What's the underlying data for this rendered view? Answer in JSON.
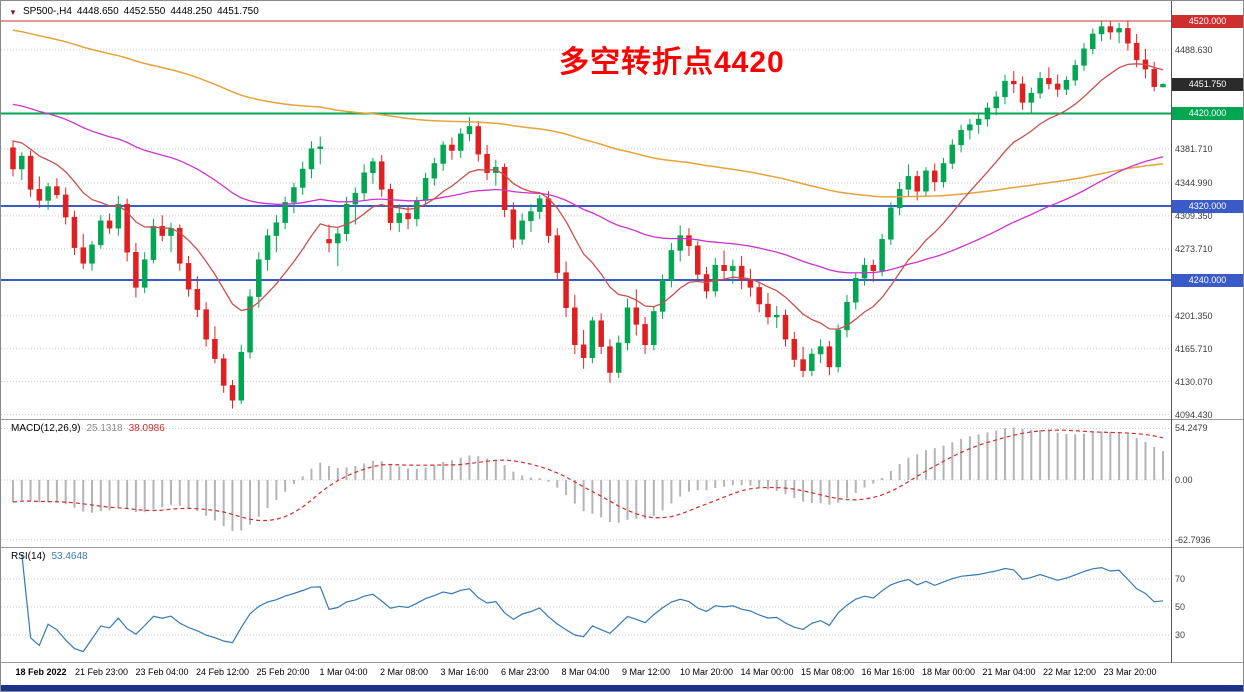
{
  "window": {
    "background": "#ffffff",
    "border_color": "#8a8a8a",
    "bottom_bar_color": "#1e3091"
  },
  "chart": {
    "title": {
      "marker": "▼",
      "symbol_period": "SP500-,H4",
      "open": "4448.650",
      "high": "4452.550",
      "low": "4448.250",
      "close": "4451.750"
    },
    "annotation": {
      "text": "多空转折点4420",
      "color": "#ff0000"
    },
    "hlines": [
      {
        "value": 4520,
        "color": "#cf2e2e",
        "width": 1
      },
      {
        "value": 4420,
        "color": "#00a651",
        "width": 2
      },
      {
        "value": 4320,
        "color": "#3a5bc7",
        "width": 2
      },
      {
        "value": 4240,
        "color": "#3a5bc7",
        "width": 2
      }
    ],
    "axis": {
      "tags": [
        {
          "text": "4520.000",
          "value": 4520,
          "color": "#cf2e2e"
        },
        {
          "text": "4451.750",
          "value": 4451.75,
          "color": "#2b2b2b"
        },
        {
          "text": "4420.000",
          "value": 4420,
          "color": "#00a651"
        },
        {
          "text": "4320.000",
          "value": 4320,
          "color": "#3a5bc7"
        },
        {
          "text": "4240.000",
          "value": 4240,
          "color": "#3a5bc7"
        }
      ],
      "grid_labels": [
        {
          "text": "4488.630",
          "value": 4488.63
        },
        {
          "text": "4381.710",
          "value": 4381.71
        },
        {
          "text": "4344.990",
          "value": 4344.99
        },
        {
          "text": "4309.350",
          "value": 4309.35
        },
        {
          "text": "4273.710",
          "value": 4273.71
        },
        {
          "text": "4201.350",
          "value": 4201.35
        },
        {
          "text": "4165.710",
          "value": 4165.71
        },
        {
          "text": "4130.070",
          "value": 4130.07
        },
        {
          "text": "4094.430",
          "value": 4094.43
        }
      ],
      "time_labels": [
        "18 Feb 2022",
        "21 Feb 23:00",
        "23 Feb 04:00",
        "24 Feb 12:00",
        "25 Feb 20:00",
        "1 Mar 04:00",
        "2 Mar 08:00",
        "3 Mar 16:00",
        "6 Mar 23:00",
        "8 Mar 04:00",
        "9 Mar 12:00",
        "10 Mar 20:00",
        "14 Mar 00:00",
        "15 Mar 08:00",
        "16 Mar 16:00",
        "18 Mar 00:00",
        "21 Mar 04:00",
        "22 Mar 12:00",
        "23 Mar 20:00"
      ]
    }
  },
  "chart_data": {
    "type": "candlestick",
    "symbol": "SP500",
    "timeframe": "H4",
    "up_color": "#00a651",
    "down_color": "#e02020",
    "y_axis": {
      "top_price": 4520,
      "bottom_price": 4094.43,
      "current_price": 4451.75
    },
    "candles": [
      [
        4383,
        4391,
        4352,
        4360
      ],
      [
        4360,
        4378,
        4348,
        4374
      ],
      [
        4374,
        4380,
        4330,
        4338
      ],
      [
        4338,
        4352,
        4318,
        4326
      ],
      [
        4326,
        4345,
        4316,
        4341
      ],
      [
        4341,
        4350,
        4328,
        4332
      ],
      [
        4332,
        4340,
        4300,
        4308
      ],
      [
        4308,
        4315,
        4267,
        4275
      ],
      [
        4275,
        4290,
        4252,
        4258
      ],
      [
        4258,
        4282,
        4250,
        4278
      ],
      [
        4278,
        4310,
        4274,
        4304
      ],
      [
        4304,
        4312,
        4290,
        4296
      ],
      [
        4296,
        4331,
        4288,
        4322
      ],
      [
        4322,
        4328,
        4260,
        4270
      ],
      [
        4270,
        4280,
        4221,
        4232
      ],
      [
        4232,
        4270,
        4226,
        4262
      ],
      [
        4262,
        4306,
        4258,
        4298
      ],
      [
        4298,
        4310,
        4282,
        4288
      ],
      [
        4288,
        4302,
        4270,
        4296
      ],
      [
        4296,
        4300,
        4250,
        4258
      ],
      [
        4258,
        4266,
        4222,
        4230
      ],
      [
        4230,
        4244,
        4200,
        4208
      ],
      [
        4208,
        4216,
        4168,
        4176
      ],
      [
        4176,
        4190,
        4150,
        4155
      ],
      [
        4155,
        4160,
        4118,
        4126
      ],
      [
        4126,
        4132,
        4101,
        4110
      ],
      [
        4110,
        4170,
        4106,
        4162
      ],
      [
        4162,
        4230,
        4155,
        4222
      ],
      [
        4222,
        4270,
        4210,
        4262
      ],
      [
        4262,
        4295,
        4250,
        4288
      ],
      [
        4288,
        4310,
        4270,
        4302
      ],
      [
        4302,
        4330,
        4295,
        4324
      ],
      [
        4324,
        4345,
        4312,
        4340
      ],
      [
        4340,
        4368,
        4332,
        4360
      ],
      [
        4360,
        4390,
        4350,
        4382
      ],
      [
        4382,
        4395,
        4365,
        4384
      ],
      [
        4284,
        4300,
        4270,
        4280
      ],
      [
        4280,
        4296,
        4255,
        4290
      ],
      [
        4290,
        4330,
        4282,
        4322
      ],
      [
        4322,
        4340,
        4300,
        4334
      ],
      [
        4334,
        4365,
        4326,
        4356
      ],
      [
        4356,
        4372,
        4344,
        4368
      ],
      [
        4368,
        4375,
        4330,
        4338
      ],
      [
        4338,
        4344,
        4294,
        4302
      ],
      [
        4302,
        4322,
        4292,
        4312
      ],
      [
        4312,
        4320,
        4295,
        4306
      ],
      [
        4306,
        4330,
        4298,
        4326
      ],
      [
        4326,
        4356,
        4320,
        4350
      ],
      [
        4350,
        4372,
        4342,
        4366
      ],
      [
        4366,
        4390,
        4358,
        4386
      ],
      [
        4386,
        4394,
        4370,
        4380
      ],
      [
        4380,
        4404,
        4372,
        4398
      ],
      [
        4398,
        4416,
        4390,
        4406
      ],
      [
        4406,
        4412,
        4368,
        4376
      ],
      [
        4376,
        4386,
        4348,
        4356
      ],
      [
        4356,
        4370,
        4342,
        4362
      ],
      [
        4362,
        4366,
        4308,
        4316
      ],
      [
        4316,
        4324,
        4275,
        4284
      ],
      [
        4284,
        4312,
        4278,
        4304
      ],
      [
        4304,
        4322,
        4292,
        4314
      ],
      [
        4314,
        4332,
        4306,
        4328
      ],
      [
        4328,
        4336,
        4280,
        4288
      ],
      [
        4288,
        4296,
        4240,
        4248
      ],
      [
        4248,
        4260,
        4200,
        4210
      ],
      [
        4210,
        4224,
        4160,
        4170
      ],
      [
        4170,
        4186,
        4144,
        4156
      ],
      [
        4156,
        4200,
        4150,
        4196
      ],
      [
        4196,
        4204,
        4160,
        4168
      ],
      [
        4168,
        4176,
        4129,
        4140
      ],
      [
        4140,
        4180,
        4134,
        4172
      ],
      [
        4172,
        4220,
        4164,
        4210
      ],
      [
        4210,
        4230,
        4180,
        4192
      ],
      [
        4192,
        4200,
        4160,
        4170
      ],
      [
        4170,
        4212,
        4164,
        4206
      ],
      [
        4206,
        4246,
        4198,
        4240
      ],
      [
        4240,
        4280,
        4232,
        4272
      ],
      [
        4272,
        4299,
        4260,
        4288
      ],
      [
        4288,
        4296,
        4266,
        4277
      ],
      [
        4277,
        4282,
        4238,
        4246
      ],
      [
        4246,
        4254,
        4220,
        4228
      ],
      [
        4228,
        4264,
        4222,
        4256
      ],
      [
        4256,
        4272,
        4240,
        4250
      ],
      [
        4250,
        4262,
        4236,
        4255
      ],
      [
        4255,
        4266,
        4230,
        4240
      ],
      [
        4240,
        4252,
        4222,
        4232
      ],
      [
        4232,
        4238,
        4205,
        4214
      ],
      [
        4214,
        4226,
        4192,
        4200
      ],
      [
        4200,
        4212,
        4188,
        4202
      ],
      [
        4202,
        4208,
        4168,
        4176
      ],
      [
        4176,
        4184,
        4146,
        4154
      ],
      [
        4154,
        4168,
        4135,
        4142
      ],
      [
        4142,
        4166,
        4136,
        4160
      ],
      [
        4160,
        4176,
        4150,
        4168
      ],
      [
        4168,
        4174,
        4137,
        4146
      ],
      [
        4146,
        4192,
        4140,
        4186
      ],
      [
        4186,
        4224,
        4178,
        4216
      ],
      [
        4216,
        4248,
        4208,
        4242
      ],
      [
        4242,
        4264,
        4234,
        4256
      ],
      [
        4256,
        4262,
        4238,
        4250
      ],
      [
        4250,
        4290,
        4244,
        4284
      ],
      [
        4284,
        4324,
        4278,
        4318
      ],
      [
        4318,
        4346,
        4310,
        4338
      ],
      [
        4338,
        4365,
        4330,
        4352
      ],
      [
        4352,
        4358,
        4326,
        4336
      ],
      [
        4336,
        4362,
        4330,
        4358
      ],
      [
        4358,
        4366,
        4336,
        4346
      ],
      [
        4346,
        4372,
        4340,
        4366
      ],
      [
        4366,
        4392,
        4360,
        4386
      ],
      [
        4386,
        4408,
        4378,
        4402
      ],
      [
        4402,
        4414,
        4392,
        4408
      ],
      [
        4408,
        4420,
        4398,
        4414
      ],
      [
        4414,
        4432,
        4406,
        4426
      ],
      [
        4426,
        4444,
        4418,
        4438
      ],
      [
        4438,
        4462,
        4430,
        4455
      ],
      [
        4455,
        4466,
        4442,
        4452
      ],
      [
        4452,
        4460,
        4424,
        4432
      ],
      [
        4432,
        4448,
        4420,
        4442
      ],
      [
        4442,
        4465,
        4436,
        4458
      ],
      [
        4458,
        4470,
        4446,
        4452
      ],
      [
        4452,
        4462,
        4438,
        4446
      ],
      [
        4446,
        4460,
        4440,
        4456
      ],
      [
        4456,
        4478,
        4450,
        4472
      ],
      [
        4472,
        4496,
        4466,
        4490
      ],
      [
        4490,
        4512,
        4484,
        4506
      ],
      [
        4506,
        4520,
        4498,
        4514
      ],
      [
        4514,
        4520,
        4500,
        4508
      ],
      [
        4508,
        4518,
        4496,
        4512
      ],
      [
        4512,
        4520,
        4488,
        4496
      ],
      [
        4496,
        4506,
        4470,
        4478
      ],
      [
        4478,
        4490,
        4458,
        4468
      ],
      [
        4468,
        4476,
        4444,
        4449
      ],
      [
        4448.65,
        4452.55,
        4448.25,
        4451.75
      ]
    ],
    "moving_averages": [
      {
        "name": "ma-slow",
        "color": "#e6a23c",
        "period": 160,
        "seed": 4512,
        "width": 1.5
      },
      {
        "name": "ma-mid",
        "color": "#cc33cc",
        "period": 64,
        "seed": 4432,
        "width": 1.3
      },
      {
        "name": "ma-fast",
        "color": "#c94f4f",
        "period": 14,
        "seed": 4395,
        "width": 1.3
      }
    ],
    "indicators": {
      "macd": {
        "label": "MACD(12,26,9)",
        "value_main": "25.1318",
        "value_signal": "38.0986",
        "fast": 12,
        "slow": 26,
        "signal": 9,
        "seed_fast": 4372,
        "seed_slow": 4396,
        "histogram_color": "#b4b4b4",
        "value_main_color": "#8a8a8a",
        "signal_color": "#cf2e2e",
        "levels": [
          {
            "text": "54.2479",
            "value": 54.2479
          },
          {
            "text": "0.00",
            "value": 0
          },
          {
            "text": "-62.7936",
            "value": -62.7936
          }
        ]
      },
      "rsi": {
        "label": "RSI(14)",
        "value": "53.4648",
        "period": 14,
        "line_color": "#3579b5",
        "levels": [
          {
            "text": "70",
            "value": 70
          },
          {
            "text": "50",
            "value": 50
          },
          {
            "text": "30",
            "value": 30
          }
        ]
      }
    }
  }
}
